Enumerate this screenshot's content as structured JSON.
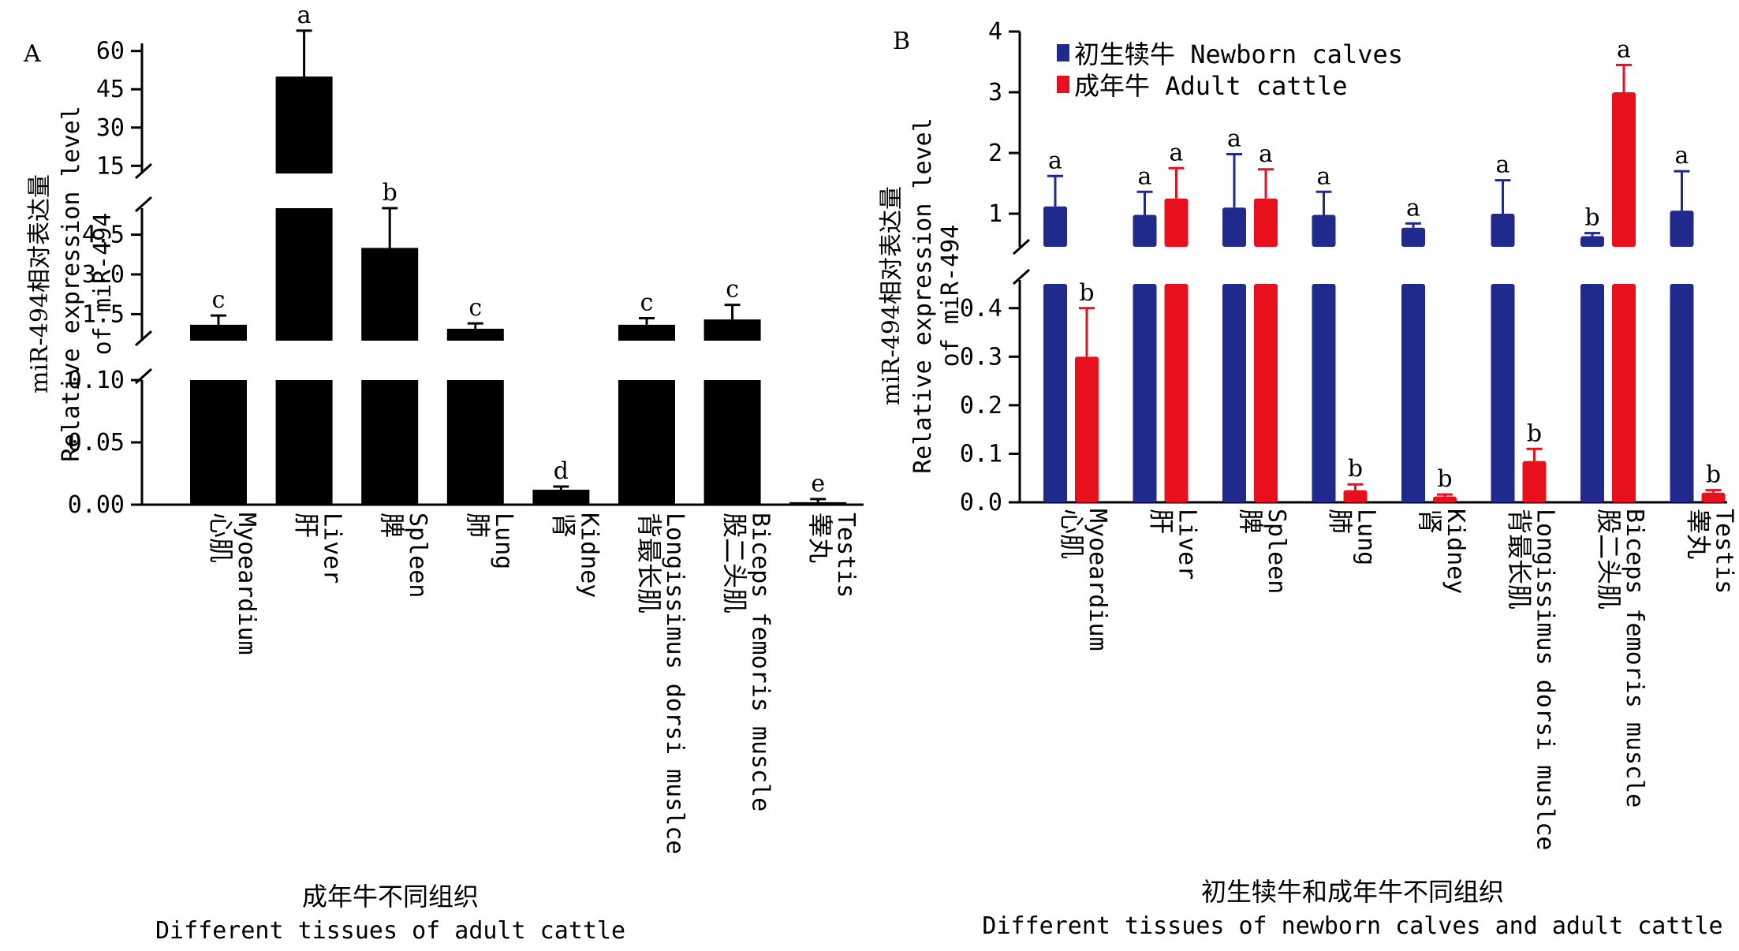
{
  "colors": {
    "black": "#000000",
    "newborn": "#1f2a8c",
    "adult": "#e8101c"
  },
  "chart_data": [
    {
      "panel": "A",
      "type": "bar",
      "ylabel_lines": [
        "miR-494相对表达量",
        "Relative expression level",
        "of miR-494"
      ],
      "xlabel_cn": "成年牛不同组织",
      "xlabel_en": "Different tissues of adult cattle",
      "broken_axis": true,
      "segments": [
        {
          "name": "low",
          "range": [
            0,
            0.1
          ],
          "ticks": [
            "0.00",
            "0.05",
            "0.10"
          ],
          "tick_values": [
            0,
            0.05,
            0.1
          ]
        },
        {
          "name": "mid",
          "range": [
            0.5,
            5.5
          ],
          "ticks": [
            "1.5",
            "3.0",
            "4.5"
          ],
          "tick_values": [
            1.5,
            3.0,
            4.5
          ]
        },
        {
          "name": "high",
          "range": [
            12,
            63
          ],
          "ticks": [
            "15",
            "30",
            "45",
            "60"
          ],
          "tick_values": [
            15,
            30,
            45,
            60
          ]
        }
      ],
      "categories": [
        {
          "cn": "心肌",
          "en": "Myoeardium"
        },
        {
          "cn": "肝",
          "en": "Liver"
        },
        {
          "cn": "脾",
          "en": "Spleen"
        },
        {
          "cn": "肺",
          "en": "Lung"
        },
        {
          "cn": "肾",
          "en": "Kidney"
        },
        {
          "cn": "背最长肌",
          "en": "Longissimus dorsi muslce"
        },
        {
          "cn": "股二头肌",
          "en": "Biceps femoris muscle"
        },
        {
          "cn": "睾丸",
          "en": "Testis"
        }
      ],
      "values": [
        1.1,
        50,
        4.0,
        0.95,
        0.012,
        1.1,
        1.3,
        0.002
      ],
      "errors": [
        0.35,
        18,
        1.5,
        0.2,
        0.002,
        0.25,
        0.55,
        0.0005
      ],
      "letters": [
        "c",
        "a",
        "b",
        "c",
        "d",
        "c",
        "c",
        "e"
      ]
    },
    {
      "panel": "B",
      "type": "bar",
      "ylabel_lines": [
        "miR-494相对表达量",
        "Relative expression level",
        "of miR-494"
      ],
      "xlabel_cn": "初生犊牛和成年牛不同组织",
      "xlabel_en": "Different tissues of newborn calves and adult cattle",
      "broken_axis": true,
      "segments": [
        {
          "name": "low",
          "range": [
            0,
            0.45
          ],
          "ticks": [
            "0.0",
            "0.1",
            "0.2",
            "0.3",
            "0.4"
          ],
          "tick_values": [
            0,
            0.1,
            0.2,
            0.3,
            0.4
          ]
        },
        {
          "name": "high",
          "range": [
            0.35,
            4
          ],
          "ticks": [
            "1",
            "2",
            "3",
            "4"
          ],
          "tick_values": [
            1,
            2,
            3,
            4
          ]
        }
      ],
      "legend": [
        {
          "name": "初生犊牛 Newborn calves",
          "color": "#1f2a8c"
        },
        {
          "name": "成年牛 Adult cattle",
          "color": "#e8101c"
        }
      ],
      "categories": [
        {
          "cn": "心肌",
          "en": "Myoeardium"
        },
        {
          "cn": "肝",
          "en": "Liver"
        },
        {
          "cn": "脾",
          "en": "Spleen"
        },
        {
          "cn": "肺",
          "en": "Lung"
        },
        {
          "cn": "肾",
          "en": "Kidney"
        },
        {
          "cn": "背最长肌",
          "en": "Longissimus dorsi muslce"
        },
        {
          "cn": "股二头肌",
          "en": "Biceps femoris muscle"
        },
        {
          "cn": "睾丸",
          "en": "Testis"
        }
      ],
      "series": [
        {
          "name": "Newborn calves",
          "values": [
            1.12,
            0.98,
            1.1,
            0.98,
            0.77,
            1.0,
            0.63,
            1.05
          ],
          "errors": [
            0.5,
            0.38,
            0.88,
            0.38,
            0.07,
            0.55,
            0.05,
            0.65
          ],
          "letters": [
            "a",
            "a",
            "a",
            "a",
            "a",
            "a",
            "b",
            "a"
          ]
        },
        {
          "name": "Adult cattle",
          "values": [
            0.3,
            1.25,
            1.25,
            0.025,
            0.012,
            0.085,
            3.0,
            0.02
          ],
          "errors": [
            0.1,
            0.5,
            0.48,
            0.012,
            0.004,
            0.025,
            0.45,
            0.005
          ],
          "letters": [
            "b",
            "a",
            "a",
            "b",
            "b",
            "b",
            "a",
            "b"
          ]
        }
      ]
    }
  ]
}
